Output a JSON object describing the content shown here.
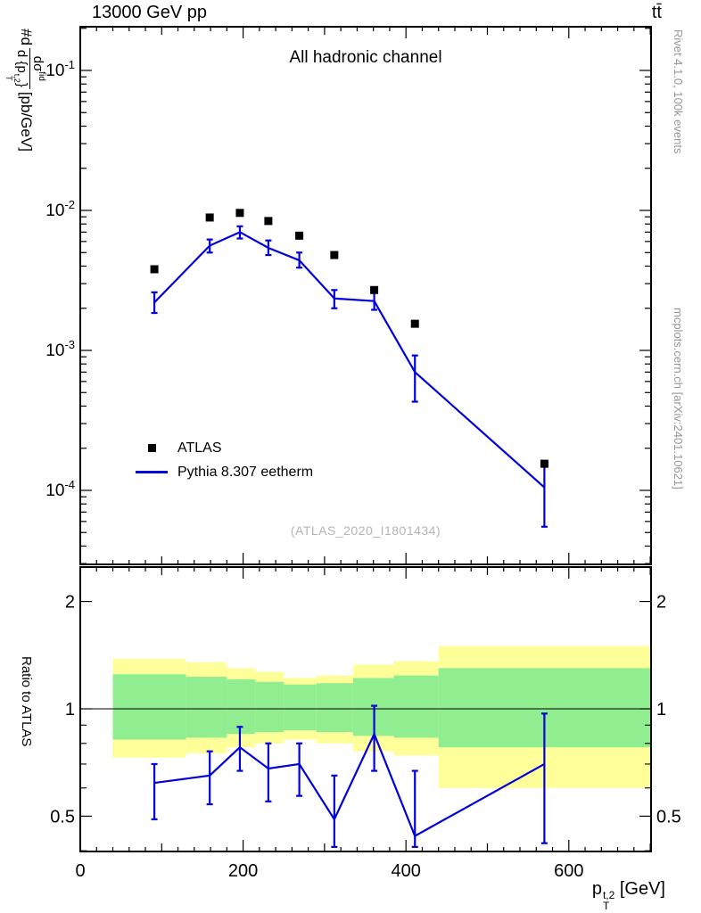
{
  "header": {
    "left_title": "13000 GeV pp",
    "right_title": "tt̄"
  },
  "credits": {
    "right_top": "Rivet 4.1.0, 100k events",
    "right_bottom": "mcplots.cern.ch [arXiv:2401.10621]"
  },
  "main_panel": {
    "inner_title": "All hadronic channel",
    "watermark": "(ATLAS_2020_I1801434)",
    "ylabel": {
      "prefix": "#d",
      "numerator": "dσ",
      "numerator_sup": "fid",
      "den_pre": "d {p",
      "den_sup": "t,2",
      "den_sub": "T",
      "den_post": "}",
      "unit": "[pb/GeV]"
    }
  },
  "ratio_panel": {
    "ylabel": "Ratio to ATLAS"
  },
  "legend": {
    "items": [
      {
        "label": "ATLAS",
        "marker": "filled-square",
        "color": "#000000"
      },
      {
        "label": "Pythia 8.307 eetherm",
        "marker": "line",
        "color": "#0000dd"
      }
    ]
  },
  "xaxis": {
    "symbol": "p",
    "sup": "t,2",
    "sub": "T",
    "unit": " [GeV]"
  },
  "chart_data": {
    "type": "line",
    "title": "All hadronic channel",
    "xlabel": "p_T^{t,2} [GeV]",
    "ylabel": "#d dσ^fid/d{p_T^{t,2}} [pb/GeV]",
    "legend_position": "inside-left-bottom",
    "top": {
      "yscale": "log",
      "xlim": [
        0,
        701
      ],
      "ylim": [
        3e-05,
        0.2
      ],
      "xticks": [
        0,
        200,
        400,
        600
      ],
      "ytick_exponents": [
        -4,
        -3,
        -2,
        -1
      ],
      "atlas": {
        "x": [
          91,
          159,
          196,
          231,
          269,
          312,
          361,
          411,
          570
        ],
        "y": [
          0.0038,
          0.0089,
          0.0096,
          0.0084,
          0.0066,
          0.0048,
          0.0027,
          0.00155,
          0.000155
        ]
      },
      "pythia": {
        "x": [
          91,
          159,
          196,
          231,
          269,
          312,
          361,
          411,
          570
        ],
        "y": [
          0.0022,
          0.0056,
          0.007,
          0.0054,
          0.0044,
          0.00235,
          0.00225,
          0.0007,
          0.000105
        ],
        "ylo": [
          0.00185,
          0.005,
          0.0063,
          0.0048,
          0.0039,
          0.002,
          0.00195,
          0.00043,
          5.5e-05
        ],
        "yhi": [
          0.0026,
          0.0062,
          0.0077,
          0.0061,
          0.005,
          0.0027,
          0.0026,
          0.00092,
          0.00015
        ]
      }
    },
    "ratio": {
      "yscale": "log",
      "ylim": [
        0.398,
        2.51
      ],
      "yticks": [
        0.5,
        1,
        2
      ],
      "minor_yticks": [
        0.4,
        0.6,
        0.7,
        0.8,
        0.9
      ],
      "line": {
        "x": [
          91,
          159,
          196,
          231,
          269,
          312,
          361,
          411,
          570
        ],
        "y": [
          0.62,
          0.65,
          0.78,
          0.68,
          0.7,
          0.49,
          0.85,
          0.44,
          0.7
        ],
        "ylo": [
          0.49,
          0.54,
          0.67,
          0.55,
          0.57,
          0.41,
          0.67,
          0.41,
          0.42
        ],
        "yhi": [
          0.7,
          0.76,
          0.89,
          0.8,
          0.8,
          0.65,
          1.02,
          0.67,
          0.97
        ]
      },
      "bands": {
        "edges": [
          40,
          130,
          180,
          215,
          250,
          290,
          335,
          385,
          440,
          700
        ],
        "yellow_lo": [
          0.73,
          0.75,
          0.78,
          0.8,
          0.82,
          0.8,
          0.76,
          0.74,
          0.6
        ],
        "yellow_hi": [
          1.38,
          1.35,
          1.3,
          1.27,
          1.22,
          1.24,
          1.33,
          1.36,
          1.5
        ],
        "green_lo": [
          0.82,
          0.83,
          0.85,
          0.86,
          0.87,
          0.86,
          0.84,
          0.83,
          0.78
        ],
        "green_hi": [
          1.25,
          1.23,
          1.21,
          1.19,
          1.17,
          1.18,
          1.22,
          1.24,
          1.3
        ]
      }
    },
    "colors": {
      "pythia_blue": "#0000dd",
      "band_yellow": "#ffff99",
      "band_green": "#90ee90",
      "atlas_black": "#000000"
    }
  }
}
